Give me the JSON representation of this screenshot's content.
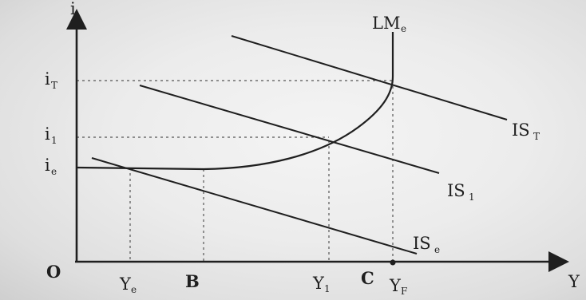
{
  "axes": {
    "y_axis": {
      "symbol": "i"
    },
    "x_axis": {
      "symbol": "Y"
    },
    "origin": "O"
  },
  "y_ticks": [
    {
      "main": "i",
      "sub": "T"
    },
    {
      "main": "i",
      "sub": "1"
    },
    {
      "main": "i",
      "sub": "e"
    }
  ],
  "x_ticks": [
    {
      "main": "Y",
      "sub": "e"
    },
    {
      "main": "B",
      "sub": ""
    },
    {
      "main": "Y",
      "sub": "1"
    },
    {
      "main": "C",
      "sub": ""
    },
    {
      "main": "Y",
      "sub": "F"
    }
  ],
  "curves": {
    "lm": {
      "main": "LM",
      "sub": "e"
    },
    "is_t": {
      "main": "IS",
      "sub": "T"
    },
    "is_1": {
      "main": "IS",
      "sub": "1"
    },
    "is_e": {
      "main": "IS",
      "sub": "e"
    }
  },
  "colors": {
    "ink": "#1f1f1f",
    "guide": "#555555",
    "background": "#ececec"
  }
}
